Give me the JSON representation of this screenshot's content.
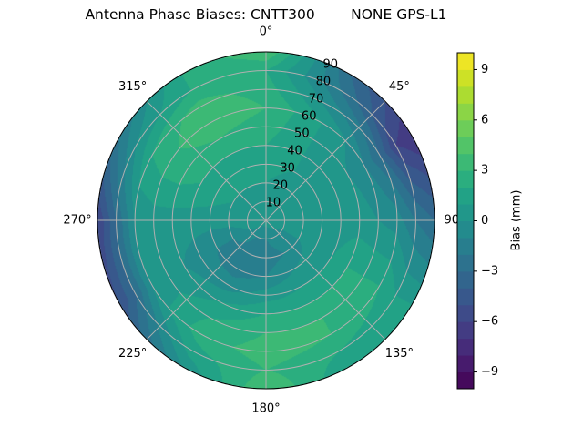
{
  "chart_data": {
    "type": "heatmap",
    "subtype": "polar filled contour",
    "title": "Antenna Phase Biases: CNTT300        NONE GPS-L1",
    "azimuth_direction": "clockwise",
    "azimuth_zero": "top",
    "azimuth_tick_labels": [
      "0°",
      "45°",
      "90°",
      "135°",
      "180°",
      "225°",
      "270°",
      "315°"
    ],
    "radial_tick_labels": [
      "10",
      "20",
      "30",
      "40",
      "50",
      "60",
      "70",
      "80",
      "90"
    ],
    "radial_range": [
      0,
      90
    ],
    "grid": true,
    "azimuth_deg": [
      0,
      30,
      60,
      90,
      120,
      150,
      180,
      210,
      240,
      270,
      300,
      330
    ],
    "zenith_deg": [
      0,
      10,
      20,
      30,
      40,
      50,
      60,
      70,
      80,
      90
    ],
    "values_mm": [
      [
        0.5,
        0.5,
        0.5,
        0.5,
        0.5,
        0.5,
        0.5,
        0.5,
        0.5,
        0.5,
        0.5,
        0.5
      ],
      [
        0.5,
        0.5,
        0.5,
        0.5,
        0,
        -0.5,
        -1,
        -1,
        0,
        0.5,
        0.5,
        0.5
      ],
      [
        1,
        0.5,
        0.5,
        0.5,
        0,
        -1,
        -1.5,
        -1.5,
        -1,
        0.5,
        1,
        1
      ],
      [
        1.5,
        1,
        0.5,
        0.5,
        0.5,
        0,
        -1,
        -1.5,
        -1,
        0.5,
        1.5,
        1.5
      ],
      [
        2,
        1,
        0.5,
        0.5,
        1,
        1,
        0.5,
        -0.5,
        -0.5,
        0.5,
        2,
        2
      ],
      [
        2.5,
        1,
        0,
        0.5,
        2,
        2,
        2,
        1,
        0,
        0.5,
        2.5,
        3
      ],
      [
        3,
        1,
        -1,
        0,
        2,
        3,
        3,
        2,
        0.5,
        0.5,
        2.5,
        4
      ],
      [
        2.5,
        -0.5,
        -3,
        -0.5,
        2,
        3,
        3.5,
        2.5,
        0,
        0,
        2,
        3.5
      ],
      [
        2,
        -2,
        -6,
        -2,
        1,
        2,
        3,
        1.5,
        -3,
        -3,
        0,
        2
      ],
      [
        4,
        -3,
        -7,
        -3,
        1,
        1,
        4,
        0,
        -5,
        -6,
        -2,
        2
      ]
    ],
    "colormap": "viridis",
    "levels": {
      "min": -10,
      "max": 10,
      "step": 1
    },
    "colorbar": {
      "label": "Bias (mm)",
      "ticks": [
        -9,
        -6,
        -3,
        0,
        3,
        6,
        9
      ],
      "tick_labels": [
        "−9",
        "−6",
        "−3",
        "0",
        "3",
        "6",
        "9"
      ],
      "placement": "right"
    }
  }
}
